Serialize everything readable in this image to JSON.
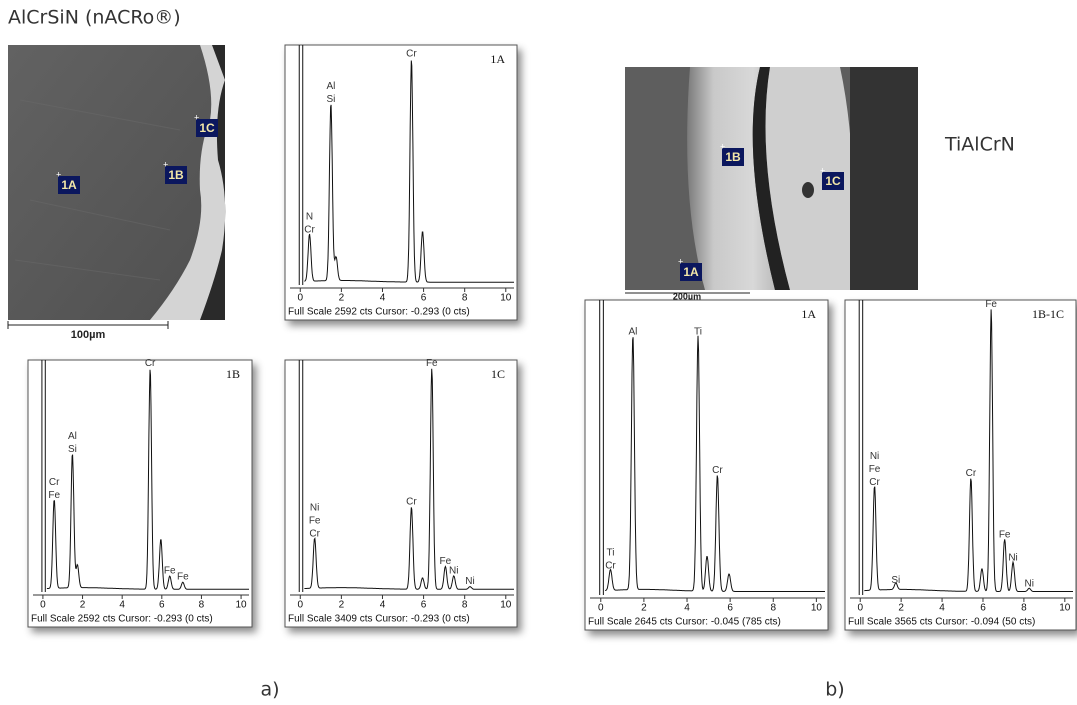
{
  "figure": {
    "panel_a": {
      "title": "AlCrSiN (nACRo®)",
      "caption": "a)",
      "sem": {
        "scale_bar": "100µm",
        "markers": [
          "1A",
          "1B",
          "1C"
        ]
      },
      "spectra": [
        {
          "label": "1A",
          "footer": "Full Scale 2592 cts Cursor: -0.293 (0 cts)",
          "xticks": [
            0,
            2,
            4,
            6,
            8,
            10
          ],
          "xlim": [
            -0.5,
            10.4
          ],
          "ylim": [
            0,
            2592
          ],
          "peaks": [
            {
              "labels": [
                "N",
                "Cr"
              ],
              "x": 0.45,
              "counts": 520
            },
            {
              "labels": [
                "Al",
                "Si"
              ],
              "x": 1.49,
              "counts": 1950
            },
            {
              "x": 1.74,
              "counts": 260
            },
            {
              "labels": [
                "Cr"
              ],
              "x": 5.41,
              "counts": 2450
            },
            {
              "x": 5.95,
              "counts": 560
            }
          ]
        },
        {
          "label": "1B",
          "footer": "Full Scale 2592 cts Cursor: -0.293 (0 cts)",
          "xticks": [
            0,
            2,
            4,
            6,
            8,
            10
          ],
          "xlim": [
            -0.5,
            10.4
          ],
          "ylim": [
            0,
            2592
          ],
          "peaks": [
            {
              "labels": [
                "Cr",
                "Fe"
              ],
              "x": 0.57,
              "counts": 1010
            },
            {
              "labels": [
                "Al",
                "Si"
              ],
              "x": 1.49,
              "counts": 1530
            },
            {
              "x": 1.74,
              "counts": 260
            },
            {
              "labels": [
                "Cr"
              ],
              "x": 5.41,
              "counts": 2510
            },
            {
              "x": 5.95,
              "counts": 570
            },
            {
              "labels": [
                "Fe"
              ],
              "x": 6.4,
              "counts": 150
            },
            {
              "labels": [
                "Fe"
              ],
              "x": 7.06,
              "counts": 80
            }
          ]
        },
        {
          "label": "1C",
          "footer": "Full Scale 3409 cts Cursor: -0.293 (0 cts)",
          "xticks": [
            0,
            2,
            4,
            6,
            8,
            10
          ],
          "xlim": [
            -0.5,
            10.4
          ],
          "ylim": [
            0,
            3409
          ],
          "peaks": [
            {
              "labels": [
                "Ni",
                "Fe",
                "Cr"
              ],
              "x": 0.7,
              "counts": 750
            },
            {
              "labels": [
                "Cr"
              ],
              "x": 5.41,
              "counts": 1230
            },
            {
              "x": 5.95,
              "counts": 170
            },
            {
              "labels": [
                "Fe"
              ],
              "x": 6.4,
              "counts": 3300
            },
            {
              "labels": [
                "Fe"
              ],
              "x": 7.06,
              "counts": 340
            },
            {
              "labels": [
                "Ni"
              ],
              "x": 7.47,
              "counts": 200
            },
            {
              "labels": [
                "Ni"
              ],
              "x": 8.26,
              "counts": 40
            }
          ]
        }
      ]
    },
    "panel_b": {
      "title": "TiAlCrN",
      "caption": "b)",
      "sem": {
        "scale_bar": "200µm",
        "markers": [
          "1B",
          "1C",
          "1A"
        ]
      },
      "spectra": [
        {
          "label": "1A",
          "footer": "Full Scale 2645 cts Cursor: -0.045 (785 cts)",
          "xticks": [
            0,
            2,
            4,
            6,
            8,
            10
          ],
          "xlim": [
            -0.5,
            10.4
          ],
          "ylim": [
            0,
            2645
          ],
          "peaks": [
            {
              "labels": [
                "Ti",
                "Cr"
              ],
              "x": 0.45,
              "counts": 190
            },
            {
              "labels": [
                "Al"
              ],
              "x": 1.49,
              "counts": 2320
            },
            {
              "labels": [
                "Ti"
              ],
              "x": 4.51,
              "counts": 2320
            },
            {
              "x": 4.93,
              "counts": 320
            },
            {
              "labels": [
                "Cr"
              ],
              "x": 5.41,
              "counts": 1060
            },
            {
              "x": 5.95,
              "counts": 160
            }
          ]
        },
        {
          "label": "1B-1C",
          "footer": "Full Scale 3565 cts Cursor: -0.094 (50 cts)",
          "xticks": [
            0,
            2,
            4,
            6,
            8,
            10
          ],
          "xlim": [
            -0.5,
            10.4
          ],
          "ylim": [
            0,
            3565
          ],
          "peaks": [
            {
              "labels": [
                "Ni",
                "Fe",
                "Cr"
              ],
              "x": 0.7,
              "counts": 1280
            },
            {
              "labels": [
                "Si"
              ],
              "x": 1.74,
              "counts": 80
            },
            {
              "labels": [
                "Cr"
              ],
              "x": 5.41,
              "counts": 1390
            },
            {
              "x": 5.95,
              "counts": 280
            },
            {
              "labels": [
                "Fe"
              ],
              "x": 6.4,
              "counts": 3460
            },
            {
              "labels": [
                "Fe"
              ],
              "x": 7.06,
              "counts": 640
            },
            {
              "labels": [
                "Ni"
              ],
              "x": 7.47,
              "counts": 360
            },
            {
              "labels": [
                "Ni"
              ],
              "x": 8.26,
              "counts": 40
            }
          ]
        }
      ]
    }
  }
}
